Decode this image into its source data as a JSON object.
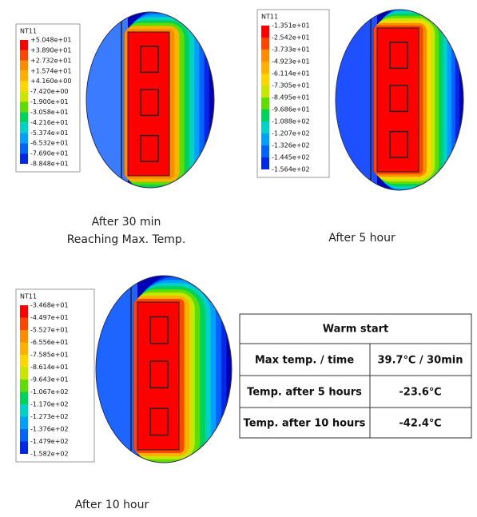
{
  "panels": [
    {
      "legend_title": "NT11",
      "legend": [
        "+5.048e+01",
        "+3.890e+01",
        "+2.732e+01",
        "+1.574e+01",
        "+4.160e+00",
        "-7.420e+00",
        "-1.900e+01",
        "-3.058e+01",
        "-4.216e+01",
        "-5.374e+01",
        "-6.532e+01",
        "-7.690e+01",
        "-8.848e+01"
      ],
      "caption": [
        "After 30 min",
        "Reaching Max. Temp."
      ]
    },
    {
      "legend_title": "NT11",
      "legend": [
        "-1.351e+01",
        "-2.542e+01",
        "-3.733e+01",
        "-4.923e+01",
        "-6.114e+01",
        "-7.305e+01",
        "-8.495e+01",
        "-9.686e+01",
        "-1.088e+02",
        "-1.207e+02",
        "-1.326e+02",
        "-1.445e+02",
        "-1.564e+02"
      ],
      "caption": [
        "After 5 hour"
      ]
    },
    {
      "legend_title": "NT11",
      "legend": [
        "-3.468e+01",
        "-4.497e+01",
        "-5.527e+01",
        "-6.556e+01",
        "-7.585e+01",
        "-8.614e+01",
        "-9.643e+01",
        "-1.067e+02",
        "-1.170e+02",
        "-1.273e+02",
        "-1.376e+02",
        "-1.479e+02",
        "-1.582e+02"
      ],
      "caption": [
        "After 10 hour"
      ]
    }
  ],
  "table": {
    "title": "Warm start",
    "rows": [
      [
        "Max temp. / time",
        "39.7℃ / 30min"
      ],
      [
        "Temp. after 5 hours",
        "-23.6℃"
      ],
      [
        "Temp. after 10 hours",
        "-42.4℃"
      ]
    ]
  }
}
